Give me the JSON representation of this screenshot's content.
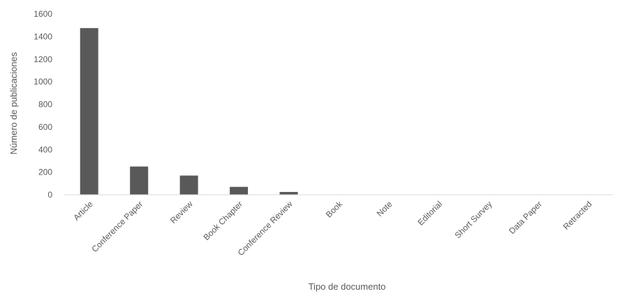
{
  "chart_data": {
    "type": "bar",
    "title": "",
    "xlabel": "Tipo de documento",
    "ylabel": "Número de publicaciones",
    "categories": [
      "Article",
      "Conference Paper",
      "Review",
      "Book Chapter",
      "Conference Review",
      "Book",
      "Note",
      "Editorial",
      "Short Survey",
      "Data Paper",
      "Retracted"
    ],
    "values": [
      1475,
      250,
      170,
      70,
      25,
      3,
      2,
      1,
      1,
      1,
      1
    ],
    "ylim": [
      0,
      1600
    ],
    "yticks": [
      0,
      200,
      400,
      600,
      800,
      1000,
      1200,
      1400,
      1600
    ],
    "bar_color": "#595959",
    "grid": false,
    "legend": "none"
  }
}
